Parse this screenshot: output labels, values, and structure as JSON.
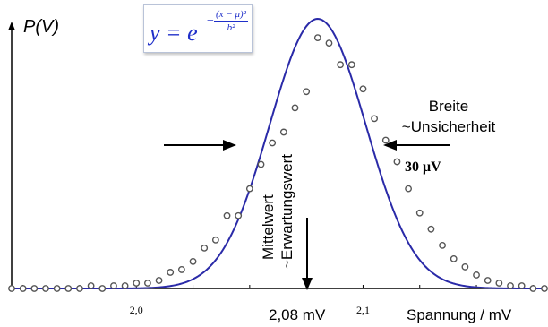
{
  "chart_data": {
    "type": "scatter",
    "ylabel": "P(V)",
    "xlabel": "Spannung / mV",
    "xlim": [
      1.945,
      2.18
    ],
    "ylim": [
      0,
      1.03
    ],
    "x_ticks": [
      2.0,
      2.1
    ],
    "x_tick_labels": [
      "2,0",
      "2,1"
    ],
    "grid": false,
    "fit": {
      "mu": 2.08,
      "b": 0.03
    },
    "formula": {
      "lhs": "y = e",
      "minus": "−",
      "exp_numerator": "(x − μ)²",
      "exp_denominator": "b²"
    },
    "annotations": {
      "mean_value": "2,08 mV",
      "mean_label_line1": "Mittelwert",
      "mean_label_line2": "~Erwartungswert",
      "width_line1": "Breite",
      "width_line2": "~Unsicherheit",
      "width_value": "30 μV"
    },
    "series": [
      {
        "x": [
          1.945,
          1.95,
          1.955,
          1.96,
          1.965,
          1.97,
          1.975,
          1.98,
          1.985,
          1.99,
          1.995,
          2.0,
          2.005,
          2.01,
          2.015,
          2.02,
          2.025,
          2.03,
          2.035,
          2.04,
          2.045,
          2.05,
          2.055,
          2.06,
          2.065,
          2.07,
          2.075,
          2.08,
          2.085,
          2.09,
          2.095,
          2.1,
          2.105,
          2.11,
          2.115,
          2.12,
          2.125,
          2.13,
          2.135,
          2.14,
          2.145,
          2.15,
          2.155,
          2.16,
          2.165,
          2.17,
          2.175,
          2.18
        ],
        "y": [
          0.0,
          0.0,
          0.0,
          0.0,
          0.0,
          0.0,
          0.0,
          0.01,
          0.0,
          0.01,
          0.01,
          0.02,
          0.02,
          0.03,
          0.06,
          0.07,
          0.1,
          0.15,
          0.18,
          0.27,
          0.27,
          0.37,
          0.46,
          0.54,
          0.58,
          0.67,
          0.73,
          0.93,
          0.91,
          0.83,
          0.83,
          0.74,
          0.63,
          0.55,
          0.47,
          0.37,
          0.28,
          0.22,
          0.16,
          0.11,
          0.08,
          0.05,
          0.03,
          0.02,
          0.01,
          0.01,
          0.0,
          0.0
        ]
      }
    ]
  }
}
